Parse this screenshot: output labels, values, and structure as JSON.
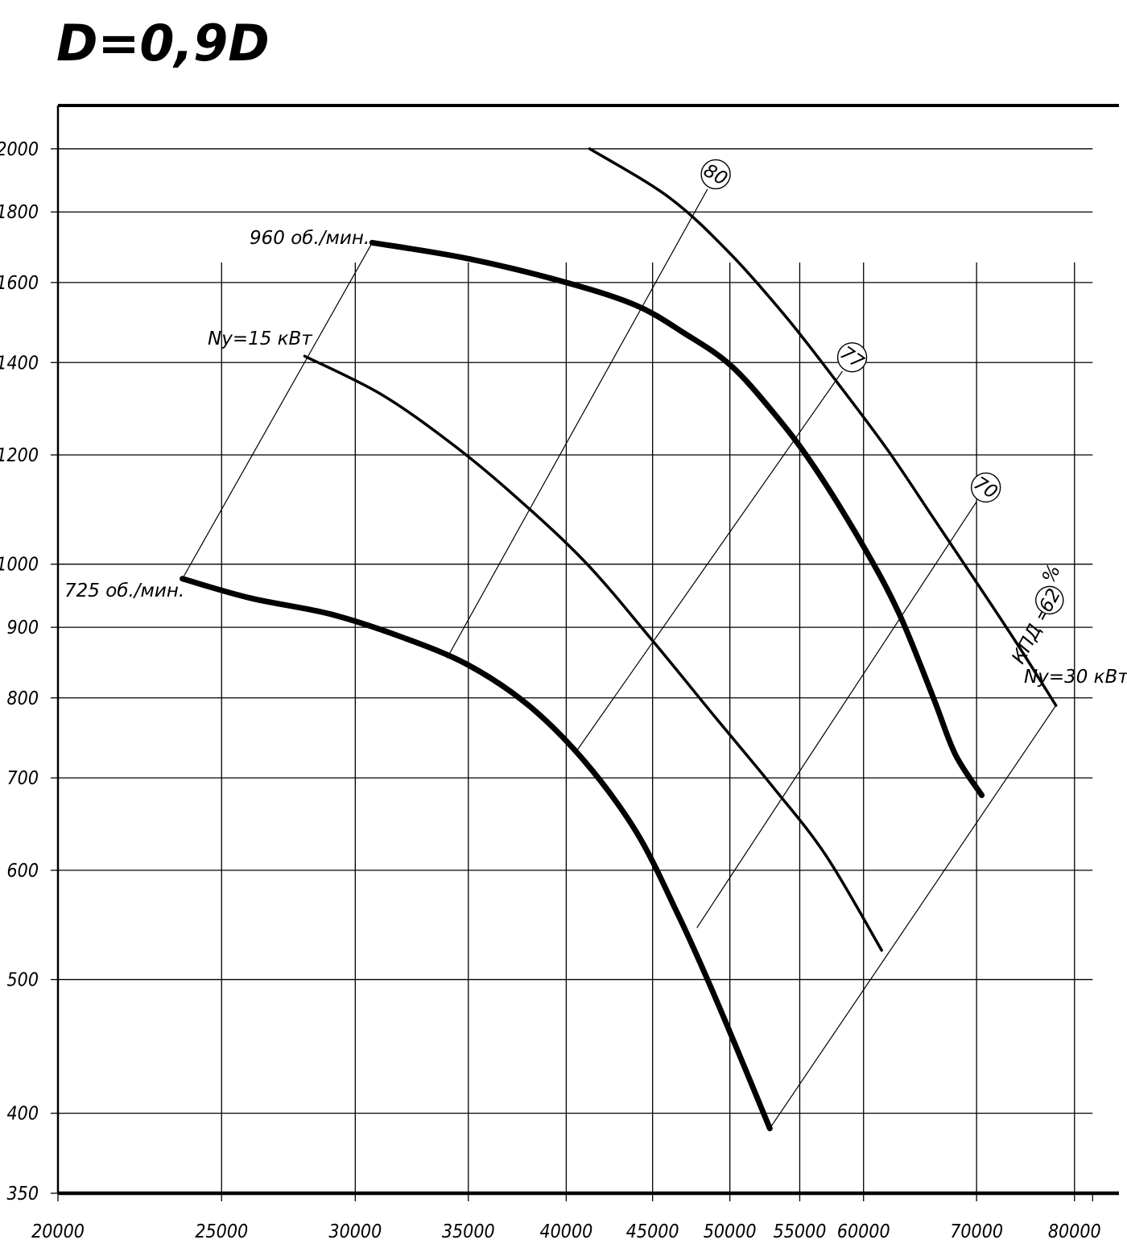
{
  "chart_data": {
    "type": "line",
    "title": "D=0,9D",
    "xlabel": "",
    "ylabel": "",
    "x_scale": "log",
    "y_scale": "log",
    "xlim": [
      20000,
      85000
    ],
    "ylim": [
      350,
      2150
    ],
    "x_ticks": [
      {
        "value": 20000,
        "label": "20000"
      },
      {
        "value": 25000,
        "label": "25000"
      },
      {
        "value": 30000,
        "label": "30000"
      },
      {
        "value": 35000,
        "label": "35000"
      },
      {
        "value": 40000,
        "label": "40000"
      },
      {
        "value": 45000,
        "label": "45000"
      },
      {
        "value": 50000,
        "label": "50000"
      },
      {
        "value": 55000,
        "label": "55000"
      },
      {
        "value": 60000,
        "label": "60000"
      },
      {
        "value": 70000,
        "label": "70000"
      },
      {
        "value": 80000,
        "label": "80000"
      }
    ],
    "y_ticks": [
      {
        "value": 350,
        "label": "350"
      },
      {
        "value": 400,
        "label": "400"
      },
      {
        "value": 500,
        "label": "500"
      },
      {
        "value": 600,
        "label": "600"
      },
      {
        "value": 700,
        "label": "700"
      },
      {
        "value": 800,
        "label": "800"
      },
      {
        "value": 900,
        "label": "900"
      },
      {
        "value": 1000,
        "label": "1000"
      },
      {
        "value": 1200,
        "label": "1200"
      },
      {
        "value": 1400,
        "label": "1400"
      },
      {
        "value": 1600,
        "label": "1600"
      },
      {
        "value": 1800,
        "label": "1800"
      },
      {
        "value": 2000,
        "label": "2000"
      }
    ],
    "grid": true,
    "series": [
      {
        "name": "725 об./мин.",
        "weight": "thick",
        "points": [
          [
            23700,
            976
          ],
          [
            26000,
            945
          ],
          [
            29000,
            920
          ],
          [
            32000,
            885
          ],
          [
            35000,
            845
          ],
          [
            38000,
            790
          ],
          [
            41000,
            720
          ],
          [
            44000,
            640
          ],
          [
            46500,
            560
          ],
          [
            48500,
            500
          ],
          [
            50500,
            445
          ],
          [
            52800,
            390
          ]
        ]
      },
      {
        "name": "960 об./мин.",
        "weight": "thick",
        "points": [
          [
            30700,
            1710
          ],
          [
            35000,
            1665
          ],
          [
            40000,
            1600
          ],
          [
            44000,
            1540
          ],
          [
            47000,
            1470
          ],
          [
            50000,
            1395
          ],
          [
            53000,
            1290
          ],
          [
            56000,
            1180
          ],
          [
            60000,
            1030
          ],
          [
            63000,
            920
          ],
          [
            66000,
            800
          ],
          [
            68000,
            728
          ],
          [
            70500,
            680
          ]
        ]
      },
      {
        "name": "Nу=15 кВт",
        "weight": "medium",
        "points": [
          [
            28000,
            1415
          ],
          [
            31000,
            1330
          ],
          [
            34000,
            1230
          ],
          [
            37000,
            1130
          ],
          [
            41000,
            1005
          ],
          [
            45000,
            880
          ],
          [
            49000,
            775
          ],
          [
            53000,
            690
          ],
          [
            57000,
            615
          ],
          [
            61500,
            525
          ]
        ]
      },
      {
        "name": "Nу=30 кВт",
        "weight": "medium",
        "points": [
          [
            41300,
            2000
          ],
          [
            46000,
            1845
          ],
          [
            50000,
            1680
          ],
          [
            54000,
            1510
          ],
          [
            58000,
            1350
          ],
          [
            62000,
            1210
          ],
          [
            66000,
            1080
          ],
          [
            70000,
            970
          ],
          [
            74000,
            875
          ],
          [
            78000,
            790
          ]
        ]
      }
    ],
    "efficiency_lines": [
      {
        "label": "62",
        "start": [
          23700,
          976
        ],
        "end": [
          30700,
          1710
        ]
      },
      {
        "label": "80",
        "start": [
          34000,
          855
        ],
        "end": [
          48500,
          1870
        ]
      },
      {
        "label": "77",
        "start": [
          40500,
          730
        ],
        "end": [
          58300,
          1380
        ]
      },
      {
        "label": "70",
        "start": [
          47800,
          545
        ],
        "end": [
          70000,
          1110
        ]
      },
      {
        "label": "62",
        "start": [
          52800,
          390
        ],
        "end": [
          78000,
          790
        ]
      }
    ],
    "annotations": {
      "rpm_low": "725 об./мин.",
      "rpm_high": "960 об./мин.",
      "power_low": "Nу=15 кВт",
      "power_high": "Nу=30 кВт",
      "efficiency_prefix": "КПД =",
      "efficiency_circle": "62",
      "efficiency_unit": "%"
    }
  }
}
